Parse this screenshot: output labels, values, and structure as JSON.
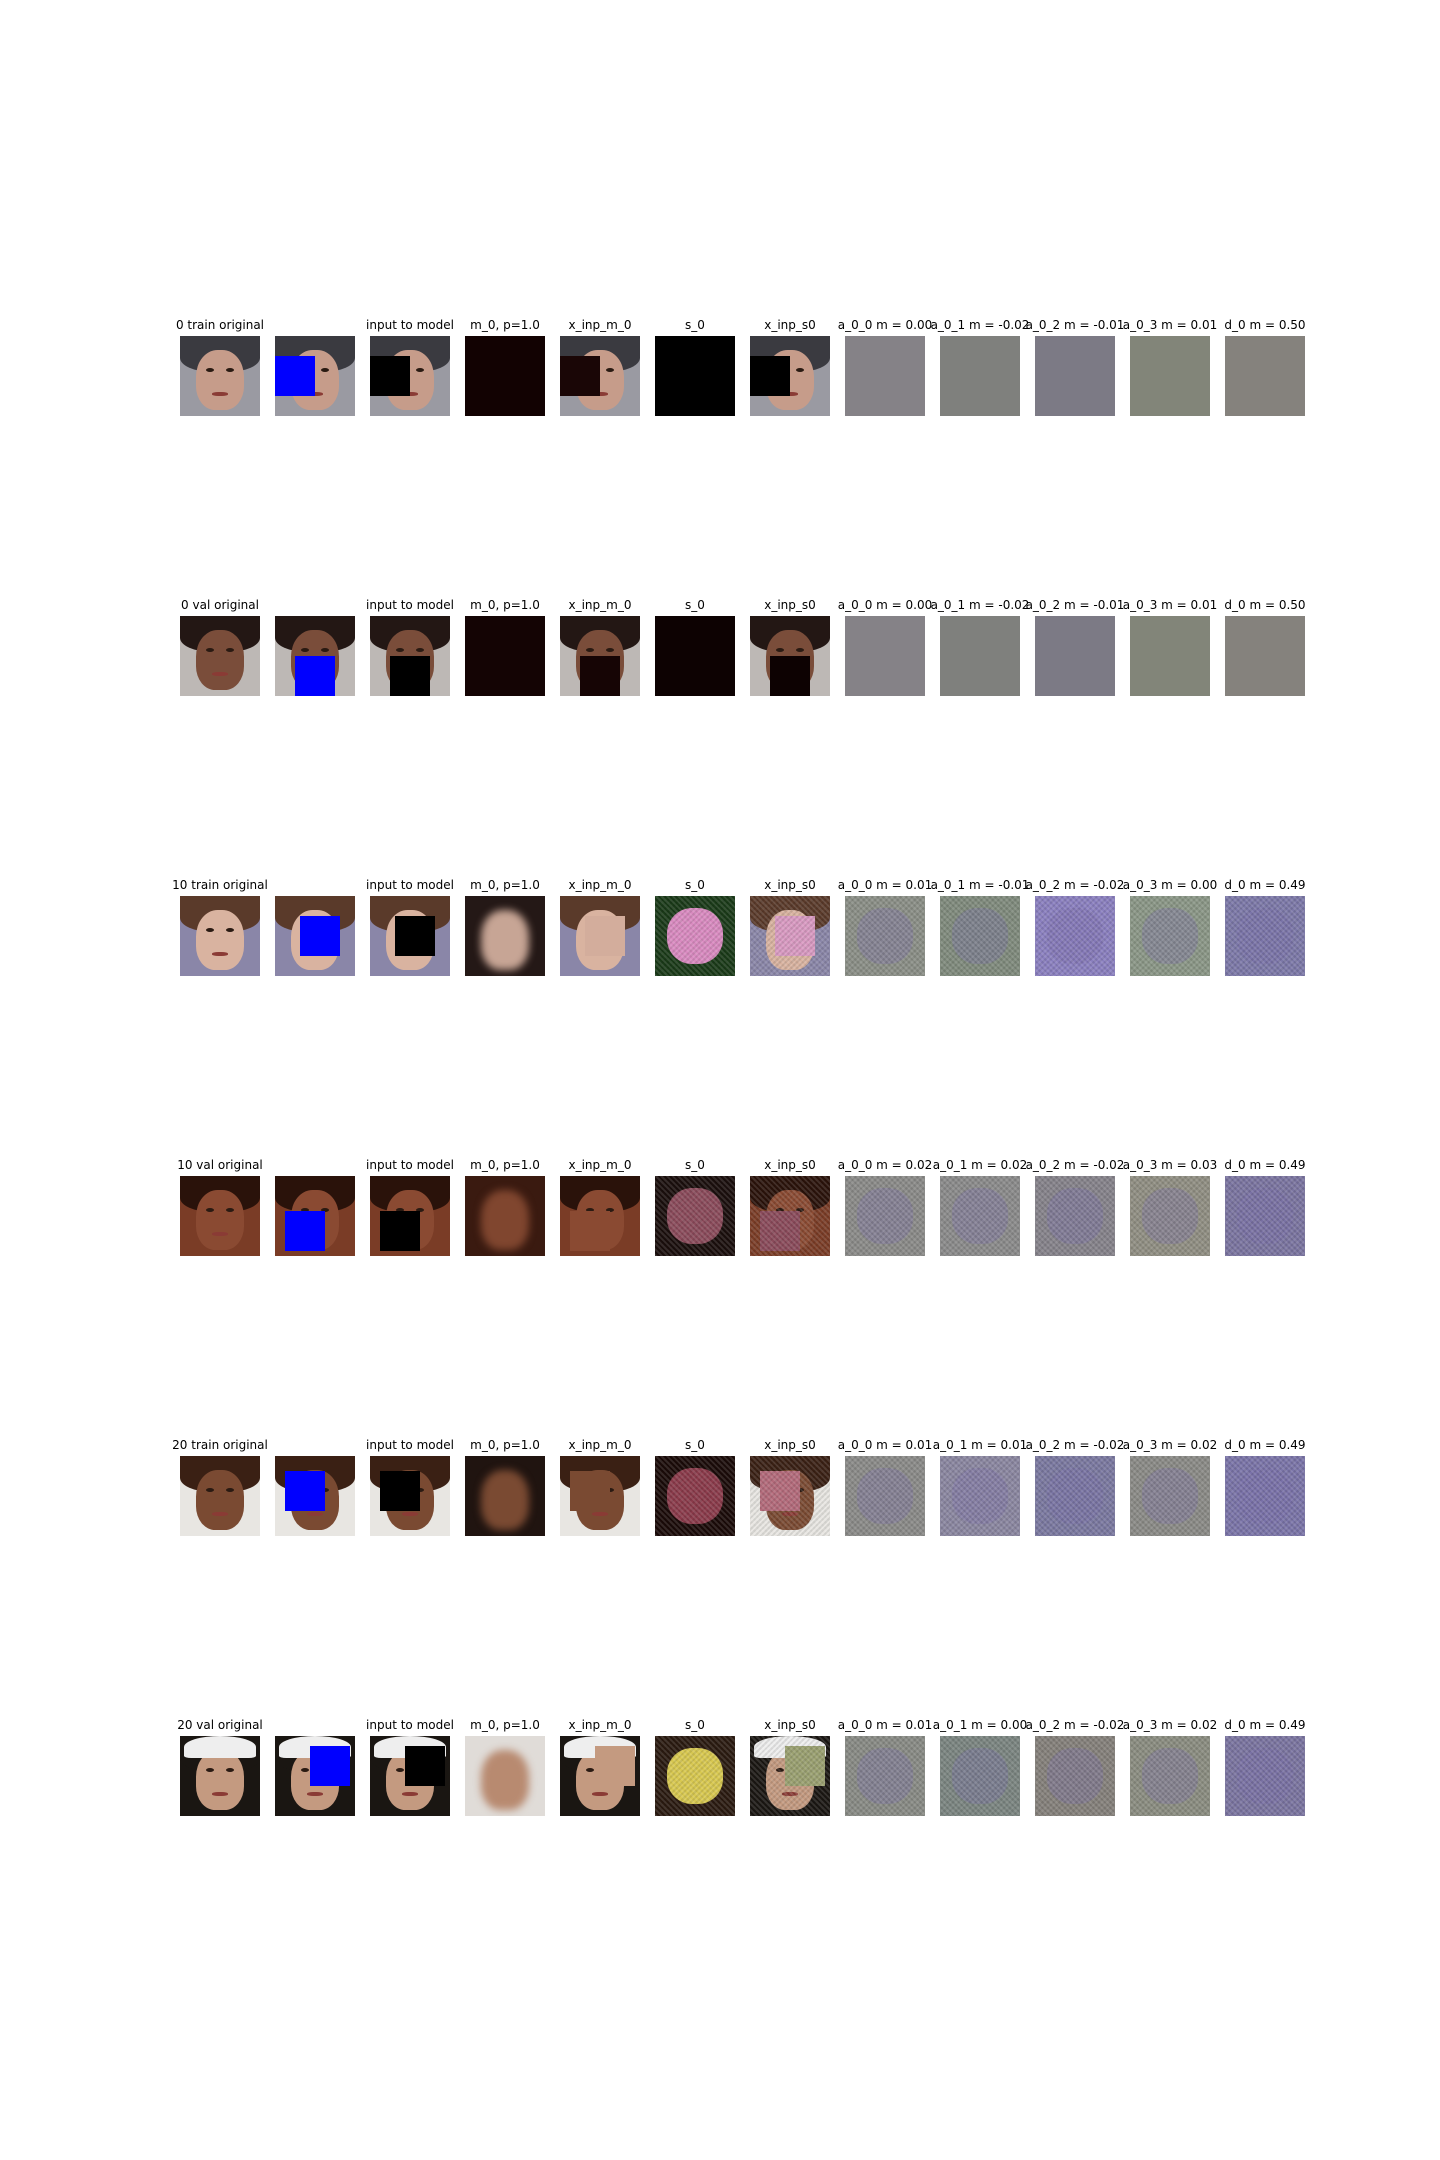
{
  "rows": [
    {
      "id": "row0",
      "titles": [
        "0 train  original",
        "",
        "input to model",
        "m_0, p=1.0",
        "x_inp_m_0",
        "s_0",
        "x_inp_s0",
        "a_0_0 m = 0.00",
        "a_0_1 m = -0.02",
        "a_0_2 m = -0.01",
        "a_0_3 m = 0.01",
        "d_0 m = 0.50"
      ],
      "face": {
        "bg": "#9a9aa2",
        "hair": "#3a3a40",
        "skin": "#c69c8a",
        "cap": false
      },
      "mask": {
        "left": 0,
        "top": 20
      },
      "m0": {
        "type": "flat",
        "color": "#120202"
      },
      "xinp_m0_fill": "#1a0606",
      "s0": {
        "type": "flat",
        "color": "#000000"
      },
      "xinp_s0_fill": "#000000",
      "a": [
        {
          "color": "#858287"
        },
        {
          "color": "#7f807d"
        },
        {
          "color": "#7c7a85"
        },
        {
          "color": "#828579"
        },
        {
          "color": "#85827d"
        }
      ],
      "a_textured": false
    },
    {
      "id": "row1",
      "titles": [
        "0 val  original",
        "",
        "input to model",
        "m_0, p=1.0",
        "x_inp_m_0",
        "s_0",
        "x_inp_s0",
        "a_0_0 m = 0.00",
        "a_0_1 m = -0.02",
        "a_0_2 m = -0.01",
        "a_0_3 m = 0.01",
        "d_0 m = 0.50"
      ],
      "face": {
        "bg": "#bdb8b5",
        "hair": "#231714",
        "skin": "#7a4d3a",
        "cap": false
      },
      "mask": {
        "left": 20,
        "top": 40
      },
      "m0": {
        "type": "flat",
        "color": "#140404"
      },
      "xinp_m0_fill": "#160505",
      "s0": {
        "type": "flat",
        "color": "#0d0202"
      },
      "xinp_s0_fill": "#0d0202",
      "a": [
        {
          "color": "#858287"
        },
        {
          "color": "#7f807d"
        },
        {
          "color": "#7c7a85"
        },
        {
          "color": "#828579"
        },
        {
          "color": "#85827d"
        }
      ],
      "a_textured": false
    },
    {
      "id": "row2",
      "titles": [
        "10 train  original",
        "",
        "input to model",
        "m_0, p=1.0",
        "x_inp_m_0",
        "s_0",
        "x_inp_s0",
        "a_0_0 m = 0.01",
        "a_0_1 m = -0.01",
        "a_0_2 m = -0.02",
        "a_0_3 m = 0.00",
        "d_0 m = 0.49"
      ],
      "face": {
        "bg": "#8a86a8",
        "hair": "#5a3a2a",
        "skin": "#d9b3a0",
        "cap": false
      },
      "mask": {
        "left": 25,
        "top": 20
      },
      "m0": {
        "type": "blurface",
        "color": "#c7a595",
        "bg": "#241816"
      },
      "xinp_m0_fill": "#d3ad9c",
      "s0": {
        "type": "blob",
        "color": "#d98ac0",
        "bg": "#1a3a18"
      },
      "xinp_s0_fill": "#d99ac2",
      "a": [
        {
          "color": "#8a8e86"
        },
        {
          "color": "#7f8a7c"
        },
        {
          "color": "#8a7fbf"
        },
        {
          "color": "#8a9686"
        },
        {
          "color": "#7c78a8"
        }
      ],
      "a_textured": true
    },
    {
      "id": "row3",
      "titles": [
        "10 val  original",
        "",
        "input to model",
        "m_0, p=1.0",
        "x_inp_m_0",
        "s_0",
        "x_inp_s0",
        "a_0_0 m = 0.02",
        "a_0_1 m = 0.02",
        "a_0_2 m = -0.02",
        "a_0_3 m = 0.03",
        "d_0 m = 0.49"
      ],
      "face": {
        "bg": "#7a3c26",
        "hair": "#2a120a",
        "skin": "#8a4a32",
        "cap": false
      },
      "mask": {
        "left": 10,
        "top": 35
      },
      "m0": {
        "type": "blurface",
        "color": "#80462f",
        "bg": "#3a1a10"
      },
      "xinp_m0_fill": "#8a4a32",
      "s0": {
        "type": "blob",
        "color": "#8a4a5a",
        "bg": "#1a0e0c"
      },
      "xinp_s0_fill": "#8a4a5a",
      "a": [
        {
          "color": "#8a8a88"
        },
        {
          "color": "#8a8a8a"
        },
        {
          "color": "#85828a"
        },
        {
          "color": "#908e82"
        },
        {
          "color": "#7a74a0"
        }
      ],
      "a_textured": true
    },
    {
      "id": "row4",
      "titles": [
        "20 train  original",
        "",
        "input to model",
        "m_0, p=1.0",
        "x_inp_m_0",
        "s_0",
        "x_inp_s0",
        "a_0_0 m = 0.01",
        "a_0_1 m = 0.01",
        "a_0_2 m = -0.02",
        "a_0_3 m = 0.02",
        "d_0 m = 0.49"
      ],
      "face": {
        "bg": "#e8e6e2",
        "hair": "#3a2014",
        "skin": "#7a4a32",
        "cap": false
      },
      "mask": {
        "left": 10,
        "top": 15
      },
      "m0": {
        "type": "blurface",
        "color": "#7a4a32",
        "bg": "#201410"
      },
      "xinp_m0_fill": "#7a4a32",
      "s0": {
        "type": "blob",
        "color": "#8a3a4a",
        "bg": "#1a0a08"
      },
      "xinp_s0_fill": "#b36a7a",
      "a": [
        {
          "color": "#8a8a88"
        },
        {
          "color": "#8a86a0"
        },
        {
          "color": "#7a78a0"
        },
        {
          "color": "#8a8a86"
        },
        {
          "color": "#7a74a8"
        }
      ],
      "a_textured": true
    },
    {
      "id": "row5",
      "titles": [
        "20 val  original",
        "",
        "input to model",
        "m_0, p=1.0",
        "x_inp_m_0",
        "s_0",
        "x_inp_s0",
        "a_0_0 m = 0.01",
        "a_0_1 m = 0.00",
        "a_0_2 m = -0.02",
        "a_0_3 m = 0.02",
        "d_0 m = 0.49"
      ],
      "face": {
        "bg": "#1a1612",
        "hair": "#1a1612",
        "skin": "#c49a80",
        "cap": true
      },
      "mask": {
        "left": 35,
        "top": 10
      },
      "m0": {
        "type": "blurface",
        "color": "#b88a70",
        "bg": "#e0dcd8"
      },
      "xinp_m0_fill": "#c49a80",
      "s0": {
        "type": "blob",
        "color": "#d8c850",
        "bg": "#2a1a10"
      },
      "xinp_s0_fill": "#9aa070",
      "a": [
        {
          "color": "#888a84"
        },
        {
          "color": "#7a8480"
        },
        {
          "color": "#84807a"
        },
        {
          "color": "#8a8c80"
        },
        {
          "color": "#7a74a0"
        }
      ],
      "a_textured": true
    }
  ]
}
